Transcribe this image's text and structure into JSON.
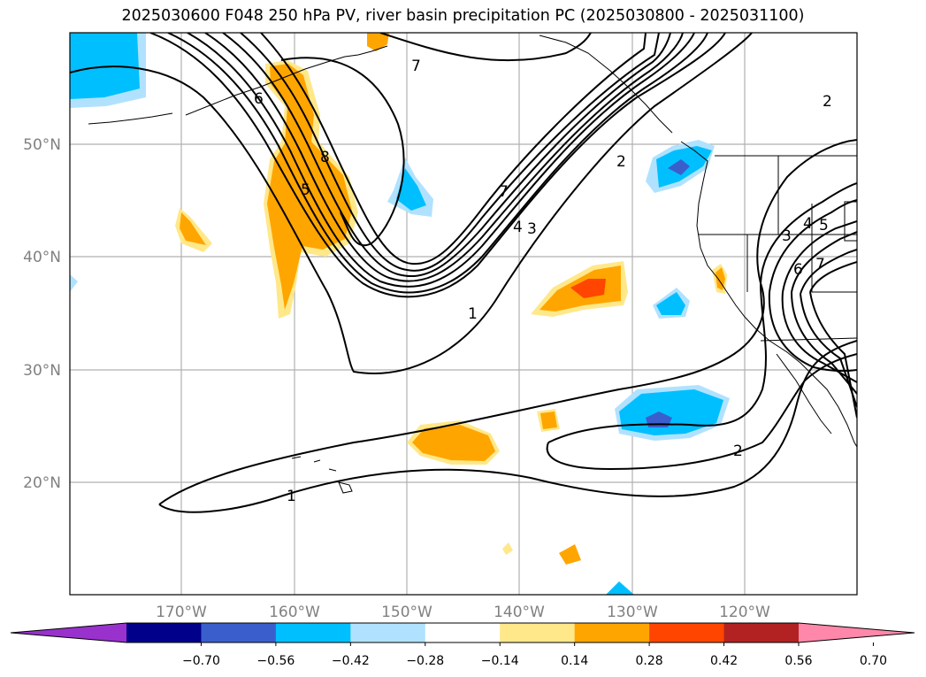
{
  "title": "2025030600 F048 250 hPa PV, river basin precipitation PC (2025030800 - 2025031100)",
  "lon_ticks": [
    "170°W",
    "160°W",
    "150°W",
    "140°W",
    "130°W",
    "120°W"
  ],
  "lat_ticks": [
    "50°N",
    "40°N",
    "30°N",
    "20°N"
  ],
  "contour_labels": [
    "6",
    "7",
    "8",
    "5",
    "7",
    "4",
    "3",
    "2",
    "1",
    "1",
    "2",
    "3",
    "4",
    "5",
    "6",
    "7",
    "2"
  ],
  "colorbar": {
    "ticks": [
      "−0.70",
      "−0.56",
      "−0.42",
      "−0.28",
      "−0.14",
      "0.14",
      "0.28",
      "0.42",
      "0.56",
      "0.70"
    ],
    "colors": [
      "#9932cc",
      "#00008b",
      "#3a5fcd",
      "#00bfff",
      "#b0e2ff",
      "#ffffff",
      "#ffe88a",
      "#ffa500",
      "#ff4500",
      "#b22222",
      "#ff88aa"
    ]
  },
  "colors": {
    "gridline": "#b0b0b0",
    "contour": "#000000",
    "coastline": "#000000",
    "tick_label": "#808080"
  }
}
